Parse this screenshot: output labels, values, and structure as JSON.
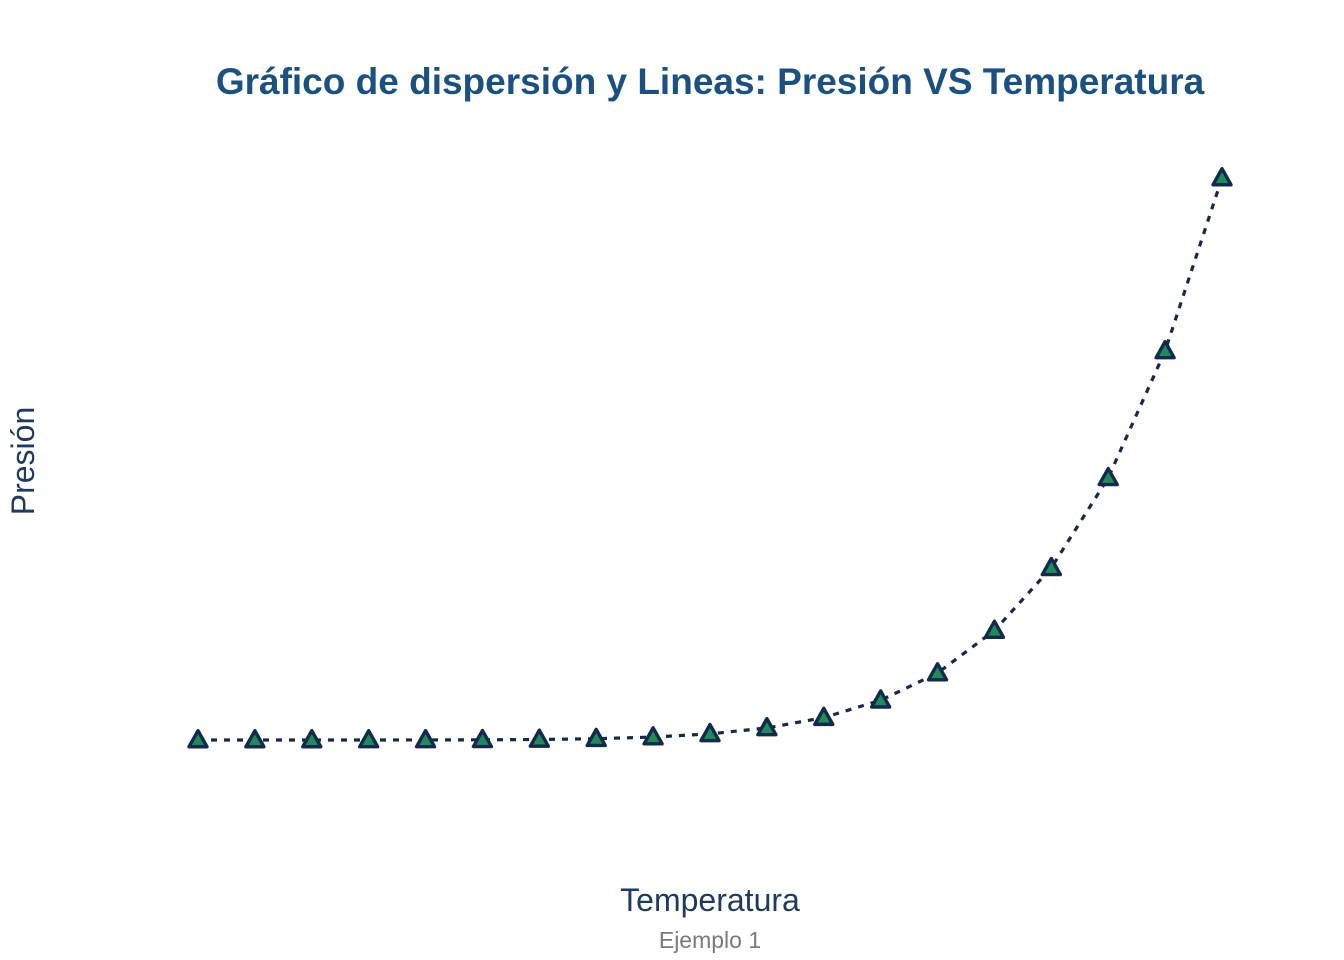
{
  "chart_data": {
    "type": "line",
    "title": "Gráfico de dispersión y Lineas: Presión VS Temperatura",
    "xlabel": "Temperatura",
    "ylabel": "Presión",
    "caption": "Ejemplo 1",
    "x": [
      0,
      20,
      40,
      60,
      80,
      100,
      120,
      140,
      160,
      180,
      200,
      220,
      240,
      260,
      280,
      300,
      320,
      340,
      360
    ],
    "series": [
      {
        "values": [
          0.0002,
          0.0012,
          0.006,
          0.03,
          0.09,
          0.27,
          0.75,
          1.85,
          4.2,
          8.8,
          17.3,
          32.1,
          57,
          96,
          157,
          247,
          376,
          558,
          806
        ],
        "line_style": "dotted",
        "marker": "triangle"
      }
    ],
    "xlim": [
      0,
      360
    ],
    "ylim": [
      0,
      806
    ],
    "grid": false,
    "legend": "none",
    "colors": {
      "title": "#1a5180",
      "axis_label": "#1f3a5f",
      "caption": "#7a7a7a",
      "line": "#142a4d",
      "marker_fill": "#1f8a5a",
      "marker_stroke": "#142a4d",
      "background": "#ffffff"
    }
  }
}
